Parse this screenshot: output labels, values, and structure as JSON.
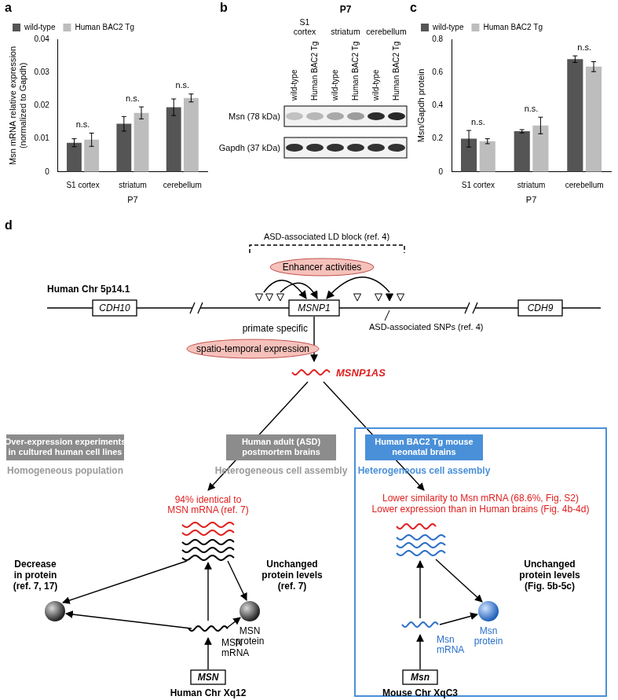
{
  "chart_data": [
    {
      "type": "bar",
      "panel_label": "a",
      "y_label": [
        "Msn mRNA relative expression",
        "(normalized to Gapdh)"
      ],
      "x_label": "P7",
      "categories": [
        "S1 cortex",
        "striatum",
        "cerebellum"
      ],
      "series": [
        {
          "name": "wild-type",
          "color": "#555555",
          "values": [
            0.0088,
            0.0145,
            0.0195
          ],
          "errors": [
            0.0012,
            0.0022,
            0.0025
          ]
        },
        {
          "name": "Human BAC2 Tg",
          "color": "#bdbdbd",
          "values": [
            0.0097,
            0.0178,
            0.0223
          ],
          "errors": [
            0.002,
            0.0018,
            0.0012
          ]
        }
      ],
      "annotations": [
        "n.s.",
        "n.s.",
        "n.s."
      ],
      "ylim": [
        0,
        0.04
      ],
      "yticks": [
        0,
        0.01,
        0.02,
        0.03,
        0.04
      ],
      "legend": "top-left",
      "grid": false
    },
    {
      "type": "bar",
      "panel_label": "c",
      "y_label": [
        "Msn/Gapdh protein"
      ],
      "x_label": "P7",
      "categories": [
        "S1 cortex",
        "striatum",
        "cerebellum"
      ],
      "series": [
        {
          "name": "wild-type",
          "color": "#555555",
          "values": [
            0.2,
            0.245,
            0.68
          ],
          "errors": [
            0.05,
            0.01,
            0.02
          ]
        },
        {
          "name": "Human BAC2 Tg",
          "color": "#bdbdbd",
          "values": [
            0.185,
            0.28,
            0.635
          ],
          "errors": [
            0.015,
            0.05,
            0.03
          ]
        }
      ],
      "annotations": [
        "n.s.",
        "n.s.",
        "n.s."
      ],
      "ylim": [
        0,
        0.8
      ],
      "yticks": [
        0,
        0.2,
        0.4,
        0.6,
        0.8
      ],
      "legend": "top-left",
      "grid": false
    }
  ],
  "blot": {
    "panel_label": "b",
    "timepoint": "P7",
    "regions": [
      [
        "S1",
        "cortex"
      ],
      [
        "striatum"
      ],
      [
        "cerebellum"
      ]
    ],
    "lanes": [
      "wild-type",
      "Human BAC2 Tg"
    ],
    "bands": [
      "Msn (78 kDa)",
      "Gapdh (37 kDa)"
    ]
  },
  "diagram": {
    "panel_label": "d",
    "ld_block": "ASD-associated LD block (ref. 4)",
    "enhancer": "Enhancer activities",
    "chromosome": "Human Chr 5p14.1",
    "genes": [
      "CDH10",
      "MSNP1",
      "CDH9"
    ],
    "snps": "ASD-associated SNPs (ref. 4)",
    "primate": "primate specific",
    "expression": "spatio-temporal expression",
    "antisense": "MSNP1AS",
    "contexts": [
      {
        "title": [
          "Over-expression experiments",
          "in cultured human cell lines"
        ],
        "subtitle": "Homogeneous population"
      },
      {
        "title": [
          "Human adult (ASD)",
          "postmortem brains"
        ],
        "subtitle": "Heterogeneous cell assembly"
      },
      {
        "title": [
          "Human BAC2 Tg mouse",
          "neonatal brains"
        ],
        "subtitle": "Heterogeneous cell assembly"
      }
    ],
    "human": {
      "note": [
        "94% identical to",
        "MSN mRNA (ref. 7)"
      ],
      "outcomes": [
        [
          "Decrease",
          "in protein",
          "(ref. 7, 17)"
        ],
        [
          "Unchanged",
          "protein levels",
          "(ref. 7)"
        ]
      ],
      "protein": [
        "MSN",
        "protein"
      ],
      "mrna": [
        "MSN",
        "mRNA"
      ],
      "gene": "MSN",
      "locus": "Human Chr Xq12"
    },
    "mouse": {
      "note": [
        "Lower similarity to Msn mRNA (68.6%, Fig. S2)",
        "Lower expression than in Human brains (Fig. 4b-4d)"
      ],
      "outcome": [
        "Unchanged",
        "protein levels",
        "(Fig. 5b-5c)"
      ],
      "protein": [
        "Msn",
        "protein"
      ],
      "mrna": [
        "Msn",
        "mRNA"
      ],
      "gene": "Msn",
      "locus": "Mouse Chr XqC3"
    }
  }
}
